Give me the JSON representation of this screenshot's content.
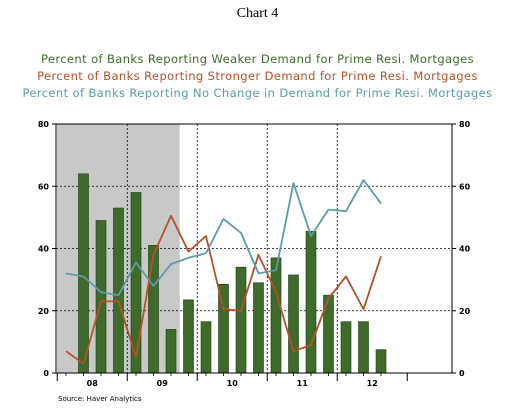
{
  "header": {
    "chart_label": "Chart 4"
  },
  "footer": {
    "source": "Source: Haver Analytics"
  },
  "colors": {
    "weaker": "#3e6b2b",
    "stronger": "#b3522a",
    "no_change": "#5f9aa6",
    "recession": "#c8c8c8"
  },
  "chart_data": {
    "type": "bar",
    "title": "",
    "legend": [
      {
        "name": "Percent of Banks Reporting Weaker  Demand for Prime Resi. Mortgages",
        "color": "#3e6b2b"
      },
      {
        "name": "Percent of Banks Reporting Stronger Demand for Prime Resi. Mortgages",
        "color": "#b3522a"
      },
      {
        "name": "Percent of Banks Reporting No Change in Demand for Prime Resi. Mortgages",
        "color": "#5f9aa6"
      }
    ],
    "x_tick_labels": [
      "08",
      "09",
      "10",
      "11",
      "12"
    ],
    "y_ticks": [
      0,
      20,
      40,
      60,
      80
    ],
    "ylim": [
      0,
      80
    ],
    "grid": true,
    "recession_shading": {
      "from_index": 0,
      "to_index": 6.5
    },
    "categories": [
      "2008Q1",
      "2008Q2",
      "2008Q3",
      "2008Q4",
      "2009Q1",
      "2009Q2",
      "2009Q3",
      "2009Q4",
      "2010Q1",
      "2010Q2",
      "2010Q3",
      "2010Q4",
      "2011Q1",
      "2011Q2",
      "2011Q3",
      "2011Q4",
      "2012Q1",
      "2012Q2",
      "2012Q3"
    ],
    "series": [
      {
        "name": "Percent of Banks Reporting Weaker  Demand for Prime Resi. Mortgages",
        "type": "bar",
        "values": [
          null,
          64,
          49,
          53,
          58,
          41,
          14,
          23.5,
          16.5,
          28.5,
          34,
          29,
          37,
          31.5,
          45.5,
          25,
          16.5,
          16.5,
          7.5
        ]
      },
      {
        "name": "Percent of Banks Reporting Stronger Demand for Prime Resi. Mortgages",
        "type": "line",
        "values": [
          7,
          3,
          23,
          23,
          5,
          38,
          50.5,
          39,
          44,
          20.5,
          20,
          38,
          26,
          7,
          9,
          24,
          31,
          20.5,
          37.5
        ]
      },
      {
        "name": "Percent of Banks Reporting No Change in Demand for Prime Resi. Mortgages",
        "type": "line",
        "values": [
          32,
          31,
          26,
          25,
          35.5,
          28,
          35,
          37,
          38.5,
          49.5,
          45,
          32,
          33,
          61,
          44,
          52.5,
          52,
          62,
          54.5
        ]
      }
    ]
  }
}
